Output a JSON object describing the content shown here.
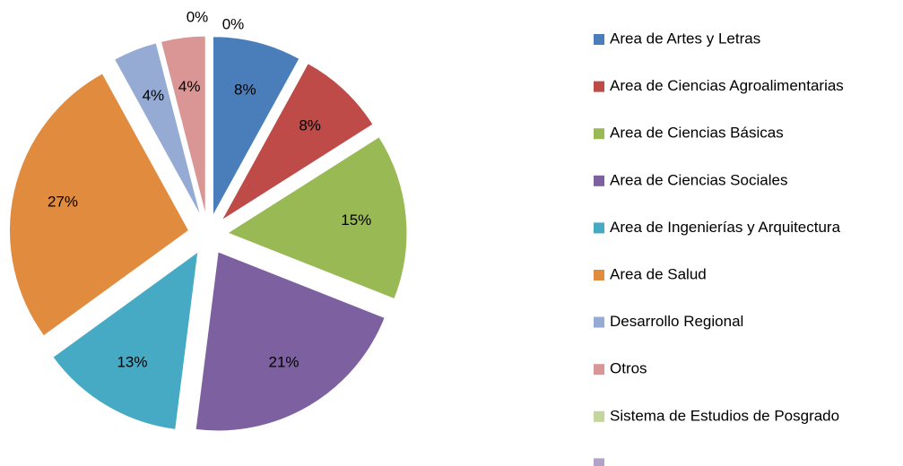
{
  "chart_data": {
    "type": "pie",
    "categories": [
      "Area de Artes y Letras",
      "Area de Ciencias Agroalimentarias",
      "Area de Ciencias Básicas",
      "Area de Ciencias Sociales",
      "Area de Ingenierías y Arquitectura",
      "Area de Salud",
      "Desarrollo Regional",
      "Otros",
      "Sistema de Estudios de Posgrado",
      null
    ],
    "values": [
      8,
      8,
      15,
      21,
      13,
      27,
      4,
      4,
      0,
      0
    ],
    "value_labels": [
      "8%",
      "8%",
      "15%",
      "21%",
      "13%",
      "27%",
      "4%",
      "4%",
      "0%",
      "0%"
    ],
    "colors": [
      "#4a7ebb",
      "#be4b48",
      "#98b954",
      "#7d60a0",
      "#46aac5",
      "#e08b3e",
      "#95abd4",
      "#d99694",
      "#c3d69b",
      "#b3a2c7"
    ],
    "legend": "right"
  }
}
